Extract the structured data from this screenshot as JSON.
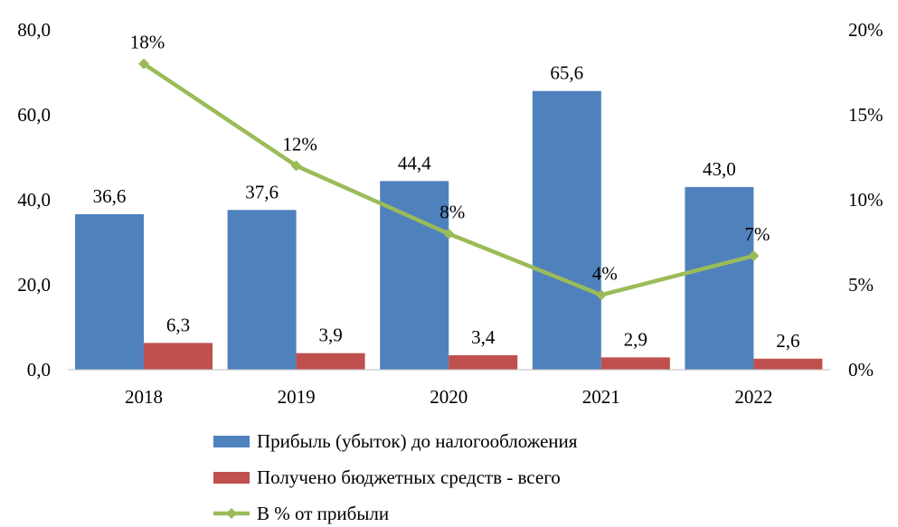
{
  "chart_data": {
    "type": "bar",
    "categories": [
      "2018",
      "2019",
      "2020",
      "2021",
      "2022"
    ],
    "series": [
      {
        "name": "Прибыль (убыток) до налогообложения",
        "type": "bar",
        "axis": "left",
        "color": "#4F81BD",
        "values": [
          36.6,
          37.6,
          44.4,
          65.6,
          43.0
        ],
        "labels": [
          "36,6",
          "37,6",
          "44,4",
          "65,6",
          "43,0"
        ]
      },
      {
        "name": "Получено бюджетных средств - всего",
        "type": "bar",
        "axis": "left",
        "color": "#C0504D",
        "values": [
          6.3,
          3.9,
          3.4,
          2.9,
          2.6
        ],
        "labels": [
          "6,3",
          "3,9",
          "3,4",
          "2,9",
          "2,6"
        ]
      },
      {
        "name": "В % от прибыли",
        "type": "line",
        "axis": "right",
        "color": "#9BBB59",
        "values": [
          18,
          12,
          8,
          4.4,
          6.7
        ],
        "labels": [
          "18%",
          "12%",
          "8%",
          "4%",
          "7%"
        ]
      }
    ],
    "y_left": {
      "min": 0,
      "max": 80,
      "ticks": [
        "0,0",
        "20,0",
        "40,0",
        "60,0",
        "80,0"
      ]
    },
    "y_right": {
      "min": 0,
      "max": 20,
      "ticks": [
        "0%",
        "5%",
        "10%",
        "15%",
        "20%"
      ]
    },
    "grid": false,
    "legend": "bottom"
  }
}
